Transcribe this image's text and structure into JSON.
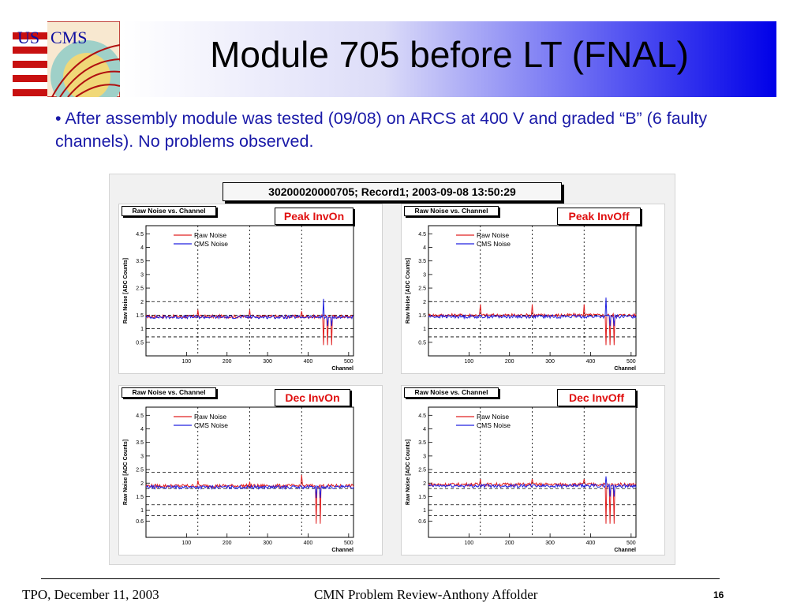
{
  "slide": {
    "title": "Module 705 before LT (FNAL)",
    "bullet": "• After assembly module was tested (09/08) on ARCS at 400 V and graded “B” (6 faulty channels). No problems observed.",
    "logo_text_left": "US",
    "logo_text_right": "CMS"
  },
  "footer": {
    "left": "TPO, December 11, 2003",
    "center": "CMN Problem Review-Anthony Affolder",
    "page": "16"
  },
  "figure": {
    "title": "30200020000705; Record1; 2003-09-08 13:50:29"
  },
  "colors": {
    "raw_noise": "#e02020",
    "cms_noise": "#2020e0",
    "panel_title_text": "#e01010",
    "slide_text": "#1a1aa8"
  },
  "chart_data": [
    {
      "type": "line",
      "title": "Peak InvOn",
      "hist_label": "Raw Noise vs. Channel",
      "xlabel": "Channel",
      "ylabel": "Raw Noise [ADC Counts]",
      "xlim": [
        0,
        512
      ],
      "ylim": [
        0,
        4.8
      ],
      "xticks": [
        100,
        200,
        300,
        400,
        500
      ],
      "yticks": [
        0.5,
        1,
        1.5,
        2,
        2.5,
        3,
        3.5,
        4,
        4.5
      ],
      "hlines": [
        2.0,
        1.5,
        1.0,
        0.7
      ],
      "vlines": [
        128,
        256,
        384
      ],
      "series": [
        {
          "name": "Raw Noise",
          "level": 1.45,
          "spikes": [
            [
              128,
              1.7
            ],
            [
              256,
              1.7
            ],
            [
              384,
              1.65
            ],
            [
              438,
              0.4
            ],
            [
              448,
              0.4
            ],
            [
              458,
              0.4
            ]
          ]
        },
        {
          "name": "CMS Noise",
          "level": 1.43,
          "spikes": [
            [
              438,
              2.1
            ],
            [
              448,
              1.1
            ],
            [
              458,
              1.1
            ]
          ]
        }
      ]
    },
    {
      "type": "line",
      "title": "Peak InvOff",
      "hist_label": "Raw Noise vs. Channel",
      "xlabel": "Channel",
      "ylabel": "Raw Noise [ADC Counts]",
      "xlim": [
        0,
        512
      ],
      "ylim": [
        0,
        4.8
      ],
      "xticks": [
        100,
        200,
        300,
        400,
        500
      ],
      "yticks": [
        0.5,
        1,
        1.5,
        2,
        2.5,
        3,
        3.5,
        4,
        4.5
      ],
      "hlines": [
        2.0,
        1.5,
        1.0,
        0.7
      ],
      "vlines": [
        128,
        256,
        384
      ],
      "series": [
        {
          "name": "Raw Noise",
          "level": 1.5,
          "spikes": [
            [
              128,
              1.9
            ],
            [
              256,
              1.9
            ],
            [
              384,
              1.9
            ],
            [
              438,
              0.4
            ],
            [
              448,
              0.4
            ],
            [
              458,
              0.4
            ]
          ]
        },
        {
          "name": "CMS Noise",
          "level": 1.45,
          "spikes": [
            [
              438,
              2.15
            ],
            [
              448,
              1.1
            ],
            [
              458,
              1.1
            ]
          ]
        }
      ]
    },
    {
      "type": "line",
      "title": "Dec InvOn",
      "hist_label": "Raw Noise vs. Channel",
      "xlabel": "Channel",
      "ylabel": "Raw Noise [ADC Counts]",
      "xlim": [
        0,
        512
      ],
      "ylim": [
        0,
        4.8
      ],
      "xticks": [
        100,
        200,
        300,
        400,
        500
      ],
      "yticks": [
        0.6,
        1,
        1.5,
        2,
        2.5,
        3,
        3.5,
        4,
        4.5
      ],
      "hlines": [
        2.4,
        1.8,
        1.2,
        0.8
      ],
      "vlines": [
        128,
        256,
        384
      ],
      "series": [
        {
          "name": "Raw Noise",
          "level": 1.9,
          "spikes": [
            [
              128,
              2.1
            ],
            [
              256,
              2.05
            ],
            [
              384,
              2.3
            ],
            [
              420,
              0.5
            ],
            [
              430,
              0.5
            ]
          ]
        },
        {
          "name": "CMS Noise",
          "level": 1.85,
          "spikes": [
            [
              420,
              1.45
            ],
            [
              430,
              1.45
            ]
          ]
        }
      ]
    },
    {
      "type": "line",
      "title": "Dec InvOff",
      "hist_label": "Raw Noise vs. Channel",
      "xlabel": "Channel",
      "ylabel": "Raw Noise [ADC Counts]",
      "xlim": [
        0,
        512
      ],
      "ylim": [
        0,
        4.8
      ],
      "xticks": [
        100,
        200,
        300,
        400,
        500
      ],
      "yticks": [
        0.6,
        1,
        1.5,
        2,
        2.5,
        3,
        3.5,
        4,
        4.5
      ],
      "hlines": [
        2.4,
        1.8,
        1.2,
        0.8
      ],
      "vlines": [
        128,
        256,
        384
      ],
      "series": [
        {
          "name": "Raw Noise",
          "level": 1.95,
          "spikes": [
            [
              128,
              2.15
            ],
            [
              256,
              2.15
            ],
            [
              384,
              2.15
            ],
            [
              438,
              0.5
            ],
            [
              448,
              0.5
            ],
            [
              458,
              0.5
            ]
          ]
        },
        {
          "name": "CMS Noise",
          "level": 1.9,
          "spikes": [
            [
              438,
              2.25
            ],
            [
              448,
              1.5
            ],
            [
              458,
              1.5
            ]
          ]
        }
      ]
    }
  ]
}
